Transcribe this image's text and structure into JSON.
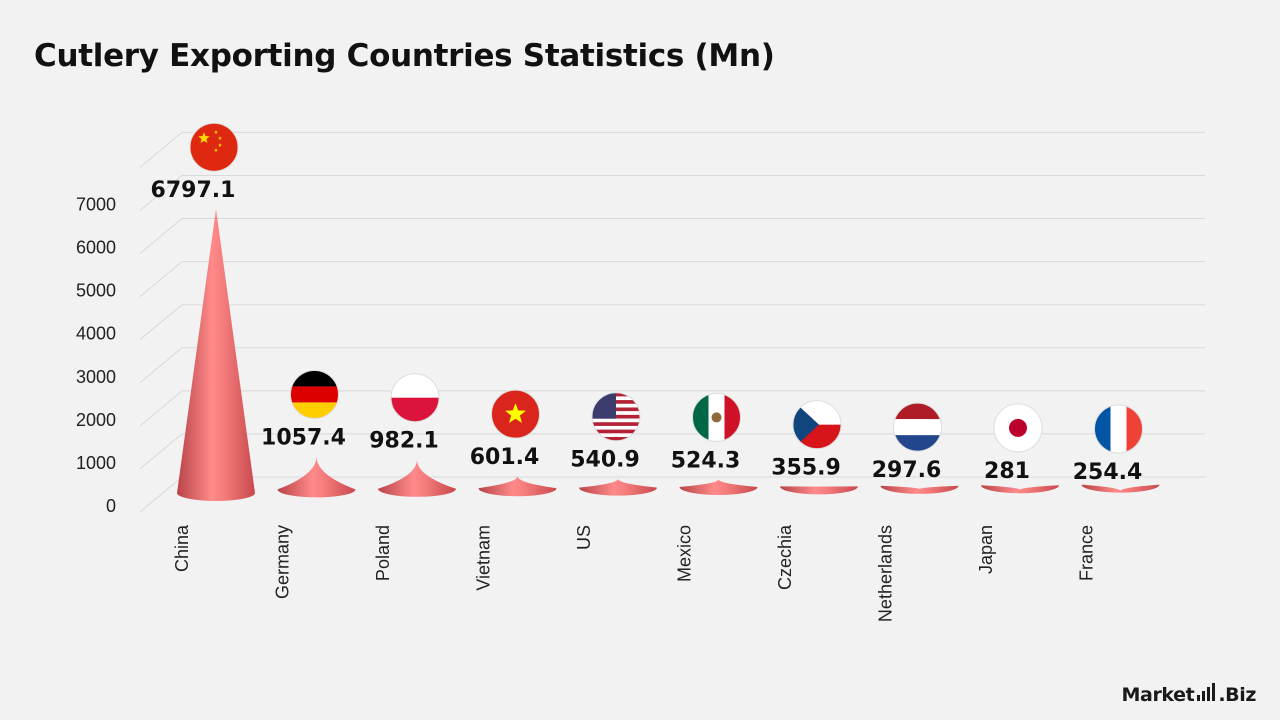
{
  "title": "Cutlery Exporting Countries Statistics (Mn)",
  "logo": {
    "word_left": "Market",
    "word_right": ".Biz"
  },
  "colors": {
    "cone": "#e8686a",
    "cone_light": "#f4a0a0",
    "cone_dark": "#b23e42",
    "grid": "#d9d9d9",
    "text": "#111111"
  },
  "chart_data": {
    "type": "bar",
    "title": "Cutlery Exporting Countries Statistics (Mn)",
    "xlabel": "",
    "ylabel": "",
    "ylim": [
      0,
      8000
    ],
    "yticks": [
      0,
      1000,
      2000,
      3000,
      4000,
      5000,
      6000,
      7000
    ],
    "grid": true,
    "categories": [
      "China",
      "Germany",
      "Poland",
      "Vietnam",
      "US",
      "Mexico",
      "Czechia",
      "Netherlands",
      "Japan",
      "France"
    ],
    "values": [
      6797.1,
      1057.4,
      982.1,
      601.4,
      540.9,
      524.3,
      355.9,
      297.6,
      281,
      254.4
    ],
    "value_labels": [
      "6797.1",
      "1057.4",
      "982.1",
      "601.4",
      "540.9",
      "524.3",
      "355.9",
      "297.6",
      "281",
      "254.4"
    ],
    "flags": [
      "china-flag",
      "germany-flag",
      "poland-flag",
      "vietnam-flag",
      "us-flag",
      "mexico-flag",
      "czechia-flag",
      "netherlands-flag",
      "japan-flag",
      "france-flag"
    ]
  }
}
